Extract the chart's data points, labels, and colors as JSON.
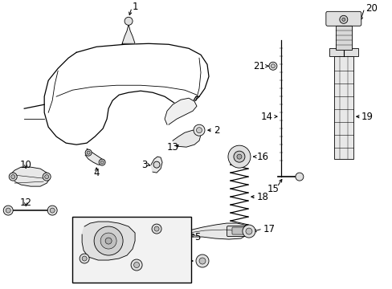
{
  "bg_color": "#ffffff",
  "fig_width": 4.89,
  "fig_height": 3.6,
  "dpi": 100,
  "line_color": "#000000",
  "text_color": "#000000",
  "font_size": 8.5
}
